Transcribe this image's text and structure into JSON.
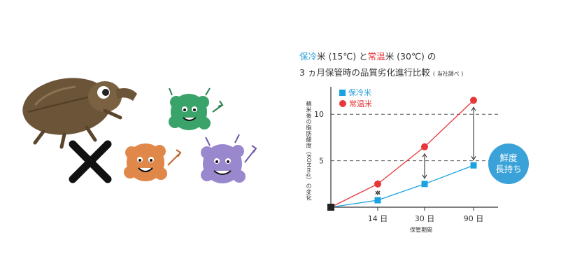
{
  "title": {
    "line1_cold": "保冷",
    "line1_cold_rest": "米 (15℃) と",
    "line1_warm": "常温",
    "line1_warm_rest": "米 (30℃) の",
    "line2": "3 ヵ月保管時の品質劣化進行比較",
    "line2_note": "( 当社調べ )"
  },
  "chart_data": {
    "type": "line",
    "x": [
      "0",
      "14 日",
      "30 日",
      "90 日"
    ],
    "xlabel": "保管期間",
    "ylabel": "精米後の脂肪酸度（KOHmg）の変化",
    "yticks": [
      5,
      10
    ],
    "ylim": [
      0,
      12.5
    ],
    "grid": "dashed at 5 and 10",
    "legend_position": "top-left",
    "series": [
      {
        "name": "保冷米",
        "marker": "square",
        "color": "#1aa3e0",
        "values": [
          0,
          0.75,
          2.5,
          4.5
        ]
      },
      {
        "name": "常温米",
        "marker": "circle",
        "color": "#e8373a",
        "values": [
          0,
          2.5,
          6.5,
          11.5
        ]
      }
    ],
    "origin_color": "#222222",
    "gap_arrows": [
      "14 日",
      "30 日",
      "90 日"
    ],
    "badge": {
      "line1": "鮮度",
      "line2": "長持ち",
      "color": "#3aa2d8"
    }
  },
  "illustration": {
    "weevil_color": "#6b5437",
    "cross_color": "#111111",
    "mold_colors": [
      "#3aa36a",
      "#e0884a",
      "#9a88cf"
    ]
  }
}
